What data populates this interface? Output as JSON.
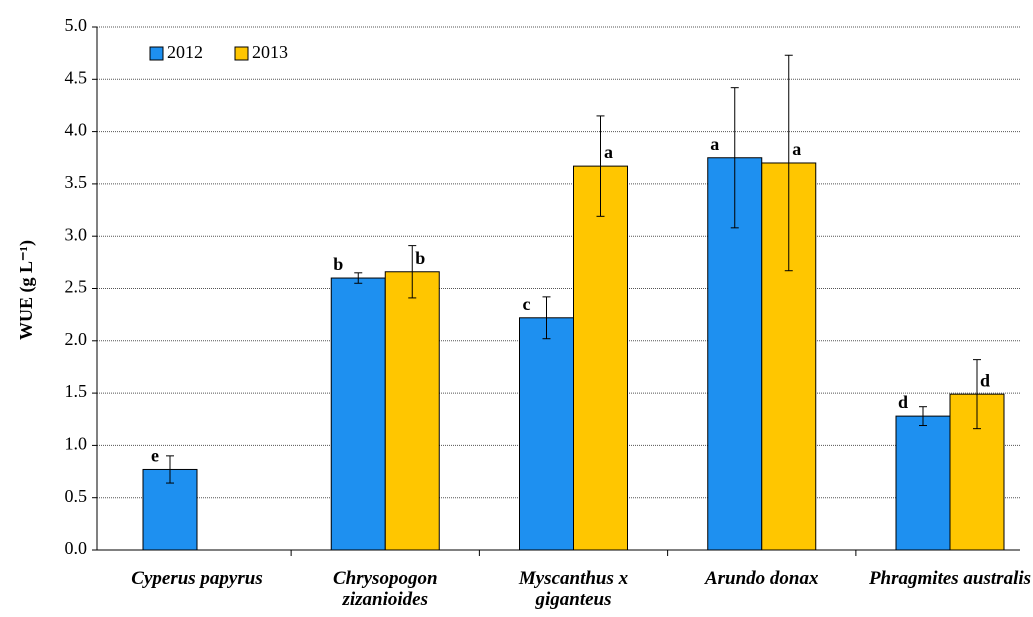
{
  "chart_data": {
    "type": "bar",
    "y_label": "WUE (g L⁻¹)",
    "categories": [
      "Cyperus papyrus",
      "Chrysopogon zizanioides",
      "Myscanthus x giganteus",
      "Arundo donax",
      "Phragmites australis"
    ],
    "series": [
      {
        "name": "2012",
        "color": "#1e90f0",
        "values": [
          0.77,
          2.6,
          2.22,
          3.75,
          1.28
        ],
        "errors": [
          0.13,
          0.05,
          0.2,
          0.67,
          0.09
        ],
        "letters": [
          "e",
          "b",
          "c",
          "a",
          "d"
        ]
      },
      {
        "name": "2013",
        "color": "#ffc600",
        "values": [
          null,
          2.66,
          3.67,
          3.7,
          1.49
        ],
        "errors": [
          null,
          0.25,
          0.48,
          1.03,
          0.33
        ],
        "letters": [
          null,
          "b",
          "a",
          "a",
          "d"
        ]
      }
    ],
    "ylim": [
      0,
      5
    ],
    "yticks": [
      {
        "value": 0,
        "label": "0.0"
      },
      0.5,
      {
        "value": 1,
        "label": "1.0"
      },
      1.5,
      {
        "value": 2,
        "label": "2.0"
      },
      2.5,
      {
        "value": 3,
        "label": "3.0"
      },
      3.5,
      {
        "value": 4,
        "label": "4.0"
      },
      4.5,
      {
        "value": 5,
        "label": "5.0"
      }
    ],
    "grid": true,
    "legend": "top-left"
  }
}
